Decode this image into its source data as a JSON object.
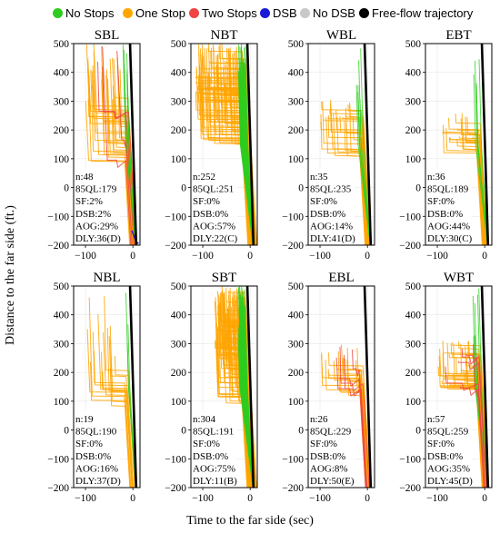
{
  "legend": [
    {
      "label": "No Stops",
      "color": "#2ecc1f"
    },
    {
      "label": "One Stop",
      "color": "#ffa500"
    },
    {
      "label": "Two Stops",
      "color": "#ef4444"
    },
    {
      "label": "DSB",
      "color": "#1a1ad6"
    },
    {
      "label": "No DSB",
      "color": "#c8c8c8"
    },
    {
      "label": "Free-flow trajectory",
      "color": "#000000"
    }
  ],
  "xlabel": "Time to the far side (sec)",
  "ylabel": "Distance to the far side (ft.)",
  "chart_data": [
    {
      "type": "line",
      "title": "SBL",
      "xlim": [
        -125,
        15
      ],
      "ylim": [
        -200,
        500
      ],
      "xticks": [
        -100,
        0
      ],
      "yticks": [
        -200,
        -100,
        0,
        100,
        200,
        300,
        400,
        500
      ],
      "series": [
        {
          "name": "No Stops"
        },
        {
          "name": "One Stop"
        },
        {
          "name": "Two Stops"
        },
        {
          "name": "DSB"
        },
        {
          "name": "Free-flow trajectory"
        }
      ],
      "stats": [
        "n:48",
        "85QL:179",
        "SF:2%",
        "DSB:2%",
        "AOG:29%",
        "DLY:36(D)"
      ]
    },
    {
      "type": "line",
      "title": "NBT",
      "xlim": [
        -125,
        15
      ],
      "ylim": [
        -200,
        500
      ],
      "xticks": [
        -100,
        0
      ],
      "yticks": [
        -200,
        -100,
        0,
        100,
        200,
        300,
        400,
        500
      ],
      "series": [
        {
          "name": "No Stops"
        },
        {
          "name": "One Stop"
        },
        {
          "name": "Free-flow trajectory"
        }
      ],
      "stats": [
        "n:252",
        "85QL:251",
        "SF:0%",
        "DSB:0%",
        "AOG:57%",
        "DLY:22(C)"
      ]
    },
    {
      "type": "line",
      "title": "WBL",
      "xlim": [
        -125,
        15
      ],
      "ylim": [
        -200,
        500
      ],
      "xticks": [
        -100,
        0
      ],
      "yticks": [
        -200,
        -100,
        0,
        100,
        200,
        300,
        400,
        500
      ],
      "series": [
        {
          "name": "No Stops"
        },
        {
          "name": "One Stop"
        },
        {
          "name": "Free-flow trajectory"
        }
      ],
      "stats": [
        "n:35",
        "85QL:235",
        "SF:0%",
        "DSB:0%",
        "AOG:14%",
        "DLY:41(D)"
      ]
    },
    {
      "type": "line",
      "title": "EBT",
      "xlim": [
        -125,
        15
      ],
      "ylim": [
        -200,
        500
      ],
      "xticks": [
        -100,
        0
      ],
      "yticks": [
        -200,
        -100,
        0,
        100,
        200,
        300,
        400,
        500
      ],
      "series": [
        {
          "name": "No Stops"
        },
        {
          "name": "One Stop"
        },
        {
          "name": "Free-flow trajectory"
        }
      ],
      "stats": [
        "n:36",
        "85QL:189",
        "SF:0%",
        "DSB:0%",
        "AOG:44%",
        "DLY:30(C)"
      ]
    },
    {
      "type": "line",
      "title": "NBL",
      "xlim": [
        -125,
        15
      ],
      "ylim": [
        -200,
        500
      ],
      "xticks": [
        -100,
        0
      ],
      "yticks": [
        -200,
        -100,
        0,
        100,
        200,
        300,
        400,
        500
      ],
      "series": [
        {
          "name": "No Stops"
        },
        {
          "name": "One Stop"
        },
        {
          "name": "Free-flow trajectory"
        }
      ],
      "stats": [
        "n:19",
        "85QL:190",
        "SF:0%",
        "DSB:0%",
        "AOG:16%",
        "DLY:37(D)"
      ]
    },
    {
      "type": "line",
      "title": "SBT",
      "xlim": [
        -125,
        15
      ],
      "ylim": [
        -200,
        500
      ],
      "xticks": [
        -100,
        0
      ],
      "yticks": [
        -200,
        -100,
        0,
        100,
        200,
        300,
        400,
        500
      ],
      "series": [
        {
          "name": "No Stops"
        },
        {
          "name": "One Stop"
        },
        {
          "name": "Free-flow trajectory"
        }
      ],
      "stats": [
        "n:304",
        "85QL:191",
        "SF:0%",
        "DSB:0%",
        "AOG:75%",
        "DLY:11(B)"
      ]
    },
    {
      "type": "line",
      "title": "EBL",
      "xlim": [
        -125,
        15
      ],
      "ylim": [
        -200,
        500
      ],
      "xticks": [
        -100,
        0
      ],
      "yticks": [
        -200,
        -100,
        0,
        100,
        200,
        300,
        400,
        500
      ],
      "series": [
        {
          "name": "One Stop"
        },
        {
          "name": "Two Stops"
        },
        {
          "name": "Free-flow trajectory"
        }
      ],
      "stats": [
        "n:26",
        "85QL:229",
        "SF:0%",
        "DSB:0%",
        "AOG:8%",
        "DLY:50(E)"
      ]
    },
    {
      "type": "line",
      "title": "WBT",
      "xlim": [
        -125,
        15
      ],
      "ylim": [
        -200,
        500
      ],
      "xticks": [
        -100,
        0
      ],
      "yticks": [
        -200,
        -100,
        0,
        100,
        200,
        300,
        400,
        500
      ],
      "series": [
        {
          "name": "No Stops"
        },
        {
          "name": "One Stop"
        },
        {
          "name": "Two Stops"
        },
        {
          "name": "Free-flow trajectory"
        }
      ],
      "stats": [
        "n:57",
        "85QL:259",
        "SF:0%",
        "DSB:0%",
        "AOG:35%",
        "DLY:45(D)"
      ]
    }
  ]
}
